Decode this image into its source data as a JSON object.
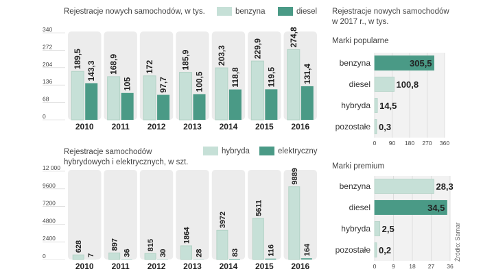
{
  "colors": {
    "light": "#c6e0d7",
    "light_stroke": "#b3d2c6",
    "dark": "#4a9a86",
    "panel": "#ececec",
    "text": "#222222"
  },
  "source": "Źródło: Samar",
  "chart_data": [
    {
      "type": "bar",
      "title": "Rejestracje nowych samochodów, w tys.",
      "categories": [
        "2010",
        "2011",
        "2012",
        "2013",
        "2014",
        "2015",
        "2016"
      ],
      "series": [
        {
          "name": "benzyna",
          "values": [
            189.5,
            168.9,
            172,
            185.9,
            203.3,
            229.9,
            274.8
          ],
          "labels": [
            "189,5",
            "168,9",
            "172",
            "185,9",
            "203,3",
            "229,9",
            "274,8"
          ]
        },
        {
          "name": "diesel",
          "values": [
            143.3,
            105,
            97.7,
            100.5,
            118.8,
            119.5,
            131.4
          ],
          "labels": [
            "143,3",
            "105",
            "97,7",
            "100,5",
            "118,8",
            "119,5",
            "131,4"
          ]
        }
      ],
      "yticks": [
        "0",
        "68",
        "136",
        "204",
        "272",
        "340"
      ],
      "ylim": [
        0,
        340
      ]
    },
    {
      "type": "bar",
      "title_lines": [
        "Rejestracje samochodów",
        "hybrydowych i elektrycznych, w szt."
      ],
      "categories": [
        "2010",
        "2011",
        "2012",
        "2013",
        "2014",
        "2015",
        "2016"
      ],
      "series": [
        {
          "name": "hybryda",
          "values": [
            628,
            897,
            815,
            1864,
            3972,
            5611,
            9889
          ],
          "labels": [
            "628",
            "897",
            "815",
            "1864",
            "3972",
            "5611",
            "9889"
          ]
        },
        {
          "name": "elektryczny",
          "values": [
            7,
            36,
            30,
            28,
            83,
            116,
            164
          ],
          "labels": [
            "7",
            "36",
            "30",
            "28",
            "83",
            "116",
            "164"
          ]
        }
      ],
      "yticks": [
        "0",
        "2400",
        "4800",
        "7200",
        "9600",
        "12 000"
      ],
      "ylim": [
        0,
        12000
      ]
    },
    {
      "type": "bar",
      "orientation": "horizontal",
      "title_lines": [
        "Rejestracje nowych samochodów",
        "w 2017 r., w tys."
      ],
      "subtitle": "Marki popularne",
      "categories": [
        "benzyna",
        "diesel",
        "hybryda",
        "pozostałe"
      ],
      "values": [
        305.5,
        100.8,
        14.5,
        0.3
      ],
      "labels": [
        "305,5",
        "100,8",
        "14,5",
        "0,3"
      ],
      "highlight": 0,
      "xticks": [
        "0",
        "90",
        "180",
        "270",
        "360"
      ],
      "xlim": [
        0,
        360
      ]
    },
    {
      "type": "bar",
      "orientation": "horizontal",
      "subtitle": "Marki premium",
      "categories": [
        "benzyna",
        "diesel",
        "hybryda",
        "pozostałe"
      ],
      "values": [
        28.3,
        34.5,
        2.5,
        0.2
      ],
      "labels": [
        "28,3",
        "34,5",
        "2,5",
        "0,2"
      ],
      "highlight": 1,
      "xticks": [
        "0",
        "9",
        "18",
        "27",
        "36"
      ],
      "xlim": [
        0,
        36
      ]
    }
  ]
}
